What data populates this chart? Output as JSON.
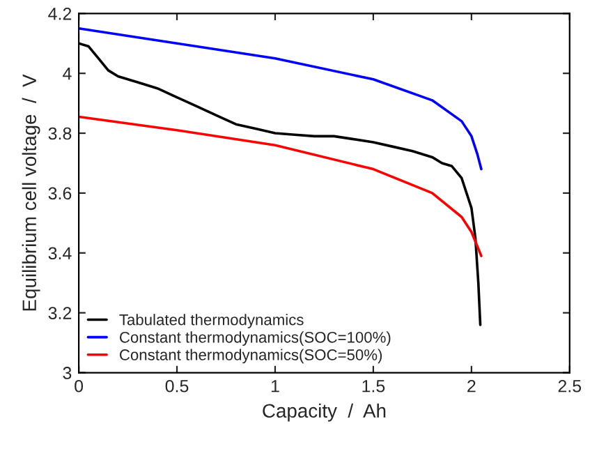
{
  "chart_data": {
    "type": "line",
    "xlabel": "Capacity  /  Ah",
    "ylabel": "Equilibrium cell voltage  /  V",
    "xlim": [
      0,
      2.5
    ],
    "xticks": [
      0,
      0.5,
      1,
      1.5,
      2,
      2.5
    ],
    "ylim": [
      3,
      4.2
    ],
    "yticks": [
      3,
      3.2,
      3.4,
      3.6,
      3.8,
      4,
      4.2
    ],
    "grid": false,
    "legend": "bottom left",
    "marker": "none",
    "line_style": "solid",
    "series": [
      {
        "name": "Tabulated thermodynamics",
        "color": "#000000",
        "x": [
          0,
          0.05,
          0.1,
          0.15,
          0.2,
          0.3,
          0.4,
          0.5,
          0.6,
          0.7,
          0.8,
          0.9,
          1.0,
          1.1,
          1.2,
          1.3,
          1.4,
          1.5,
          1.6,
          1.7,
          1.8,
          1.85,
          1.9,
          1.95,
          2.0,
          2.02,
          2.035,
          2.045
        ],
        "values": [
          4.1,
          4.09,
          4.05,
          4.01,
          3.99,
          3.97,
          3.95,
          3.92,
          3.89,
          3.86,
          3.83,
          3.815,
          3.8,
          3.795,
          3.79,
          3.79,
          3.78,
          3.77,
          3.755,
          3.74,
          3.72,
          3.7,
          3.69,
          3.65,
          3.55,
          3.45,
          3.3,
          3.16
        ]
      },
      {
        "name": "Constant thermodynamics(SOC=100%)",
        "color": "#0000ff",
        "x": [
          0,
          0.5,
          1.0,
          1.5,
          1.8,
          1.95,
          2.0,
          2.03,
          2.05
        ],
        "values": [
          4.15,
          4.1,
          4.05,
          3.98,
          3.91,
          3.84,
          3.79,
          3.73,
          3.68
        ]
      },
      {
        "name": "Constant thermodynamics(SOC=50%)",
        "color": "#ff0000",
        "x": [
          0,
          0.5,
          1.0,
          1.5,
          1.8,
          1.95,
          2.0,
          2.05
        ],
        "values": [
          3.855,
          3.81,
          3.76,
          3.68,
          3.6,
          3.52,
          3.47,
          3.39
        ]
      }
    ]
  }
}
